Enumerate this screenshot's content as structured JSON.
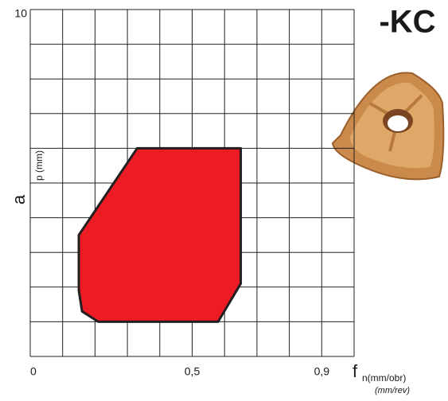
{
  "chart_data": {
    "type": "area-region",
    "title": "-KC",
    "x_label": {
      "symbol": "f",
      "subscript": "n(mm/obr)",
      "note": "(mm/rev)"
    },
    "y_label": {
      "symbol": "a",
      "subscript": "p (mm)"
    },
    "xlim": [
      0,
      1
    ],
    "ylim": [
      0,
      10
    ],
    "xticks": [
      0,
      {
        "value": 0.5,
        "label": "0,5"
      },
      {
        "value": 0.9,
        "label": "0,9"
      }
    ],
    "yticks": [
      10
    ],
    "grid": true,
    "grid_step": {
      "x": 0.1,
      "y": 1
    },
    "region": {
      "color": "#ed1c24",
      "x": [
        0.33,
        0.65,
        0.65,
        0.58,
        0.21,
        0.16,
        0.15,
        0.15
      ],
      "y": [
        6,
        6,
        2.1,
        1,
        1,
        1.3,
        1.9,
        3.5
      ]
    }
  }
}
